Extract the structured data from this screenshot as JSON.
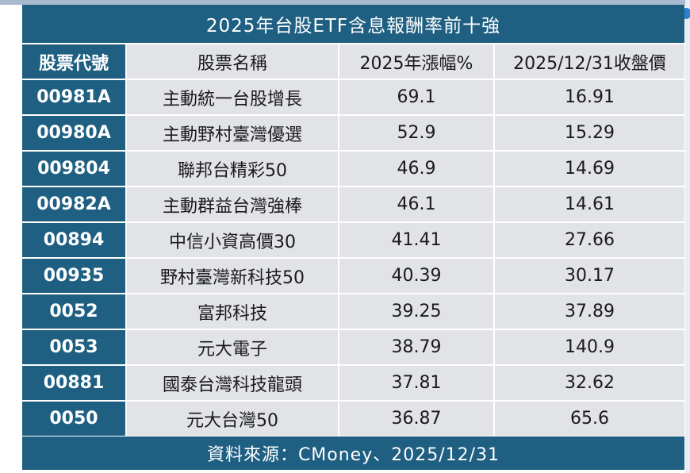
{
  "title": "2025年台股ETF含息報酬率前十強",
  "headers": [
    "股票代號",
    "股票名稱",
    "2025年漲幅%",
    "2025/12/31收盤價"
  ],
  "rows": [
    {
      "code": "00981A",
      "name": "主動統一台股增長",
      "change": "69.1",
      "close": "16.91"
    },
    {
      "code": "00980A",
      "name": "主動野村臺灣優選",
      "change": "52.9",
      "close": "15.29"
    },
    {
      "code": "009804",
      "name": "聯邦台精彩50",
      "change": "46.9",
      "close": "14.69"
    },
    {
      "code": "00982A",
      "name": "主動群益台灣強棒",
      "change": "46.1",
      "close": "14.61"
    },
    {
      "code": "00894",
      "name": "中信小資高價30",
      "change": "41.41",
      "close": "27.66"
    },
    {
      "code": "00935",
      "name": "野村臺灣新科技50",
      "change": "40.39",
      "close": "30.17"
    },
    {
      "code": "0052",
      "name": "富邦科技",
      "change": "39.25",
      "close": "37.89"
    },
    {
      "code": "0053",
      "name": "元大電子",
      "change": "38.79",
      "close": "140.9"
    },
    {
      "code": "00881",
      "name": "國泰台灣科技龍頭",
      "change": "37.81",
      "close": "32.62"
    },
    {
      "code": "0050",
      "name": "元大台灣50",
      "change": "36.87",
      "close": "65.6"
    }
  ],
  "footer": "資料來源：CMoney、2025/12/31",
  "colors": {
    "header_blue": "#1e5f82",
    "cell_gray": "#e1e3e7",
    "text": "#1a1a1a"
  }
}
